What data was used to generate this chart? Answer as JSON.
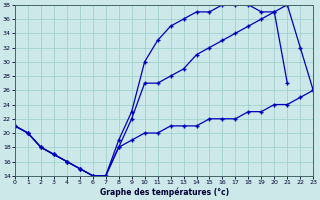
{
  "xlabel": "Graphe des températures (°c)",
  "xlim": [
    0,
    23
  ],
  "ylim": [
    14,
    38
  ],
  "yticks": [
    14,
    16,
    18,
    20,
    22,
    24,
    26,
    28,
    30,
    32,
    34,
    36,
    38
  ],
  "xticks": [
    0,
    1,
    2,
    3,
    4,
    5,
    6,
    7,
    8,
    9,
    10,
    11,
    12,
    13,
    14,
    15,
    16,
    17,
    18,
    19,
    20,
    21,
    22,
    23
  ],
  "background_color": "#cce8e8",
  "line_color": "#0000bb",
  "s1_x": [
    0,
    1,
    2,
    3,
    4,
    5,
    6,
    7,
    8,
    9,
    10,
    11,
    12,
    13,
    14,
    15,
    16,
    17,
    18,
    19,
    20,
    21
  ],
  "s1_y": [
    21,
    20,
    18,
    17,
    16,
    15,
    14,
    14,
    19,
    23,
    30,
    33,
    35,
    36,
    37,
    37,
    38,
    38,
    38,
    37,
    37,
    27
  ],
  "s2_x": [
    0,
    1,
    2,
    3,
    4,
    5,
    6,
    7,
    8,
    9,
    10,
    11,
    12,
    13,
    14,
    15,
    16,
    17,
    18,
    19,
    20,
    21,
    22,
    23
  ],
  "s2_y": [
    21,
    20,
    18,
    17,
    16,
    15,
    14,
    14,
    18,
    22,
    27,
    27,
    28,
    29,
    31,
    32,
    33,
    34,
    35,
    36,
    37,
    38,
    32,
    26
  ],
  "s3_x": [
    0,
    1,
    2,
    3,
    4,
    5,
    6,
    7,
    8,
    9,
    10,
    11,
    12,
    13,
    14,
    15,
    16,
    17,
    18,
    19,
    20,
    21,
    22,
    23
  ],
  "s3_y": [
    21,
    20,
    18,
    17,
    16,
    15,
    14,
    14,
    18,
    19,
    20,
    20,
    21,
    21,
    21,
    22,
    22,
    22,
    23,
    23,
    24,
    24,
    25,
    26
  ]
}
